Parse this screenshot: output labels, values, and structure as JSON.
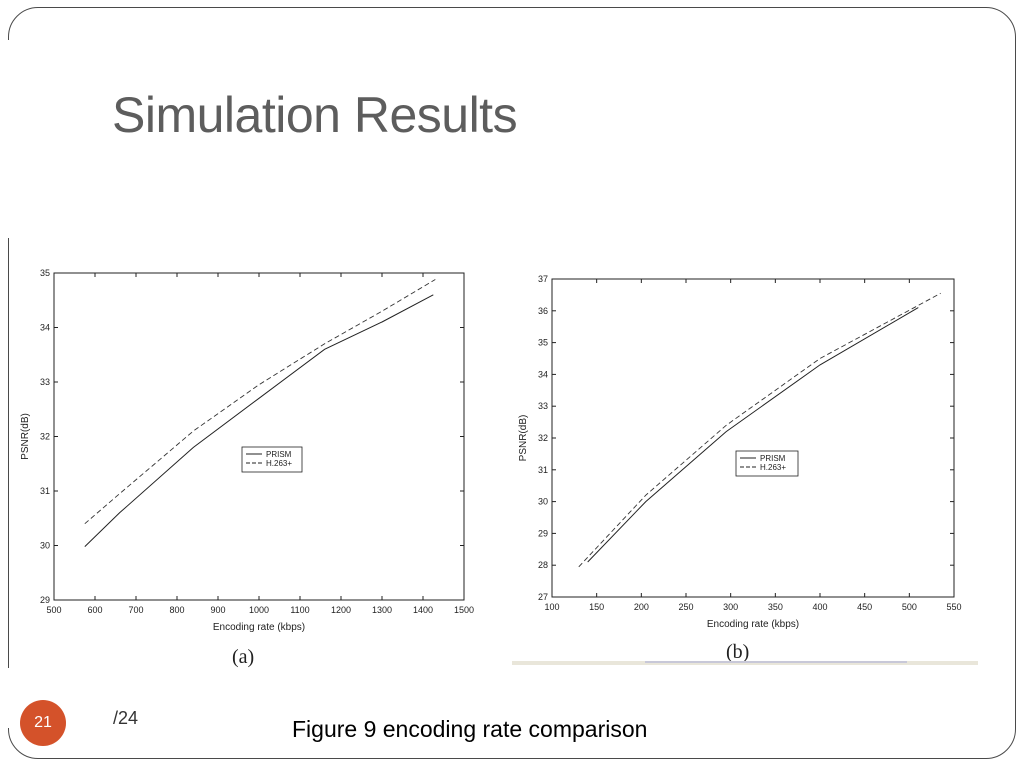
{
  "slide": {
    "title": "Simulation Results",
    "page_number": "21",
    "page_total": "/24",
    "figure_caption": "Figure 9 encoding rate comparison",
    "accent_color": "#d4522a"
  },
  "chart_data": [
    {
      "type": "line",
      "panel_label": "(a)",
      "xlabel": "Encoding rate (kbps)",
      "ylabel": "PSNR(dB)",
      "xlim": [
        500,
        1500
      ],
      "ylim": [
        29,
        35
      ],
      "xticks": [
        500,
        600,
        700,
        800,
        900,
        1000,
        1100,
        1200,
        1300,
        1400,
        1500
      ],
      "yticks": [
        29,
        30,
        31,
        32,
        33,
        34,
        35
      ],
      "grid": false,
      "legend": "center",
      "series": [
        {
          "name": "PRISM",
          "style": "solid",
          "x": [
            575,
            660,
            840,
            1000,
            1160,
            1300,
            1425
          ],
          "y": [
            29.98,
            30.6,
            31.8,
            32.7,
            33.6,
            34.1,
            34.6
          ]
        },
        {
          "name": "H.263+",
          "style": "dashed",
          "x": [
            575,
            660,
            840,
            1000,
            1160,
            1300,
            1430
          ],
          "y": [
            30.4,
            30.95,
            32.1,
            32.95,
            33.7,
            34.3,
            34.88
          ]
        }
      ]
    },
    {
      "type": "line",
      "panel_label": "(b)",
      "xlabel": "Encoding rate (kbps)",
      "ylabel": "PSNR(dB)",
      "xlim": [
        100,
        550
      ],
      "ylim": [
        27,
        37
      ],
      "xticks": [
        100,
        150,
        200,
        250,
        300,
        350,
        400,
        450,
        500,
        550
      ],
      "yticks": [
        27,
        28,
        29,
        30,
        31,
        32,
        33,
        34,
        35,
        36,
        37
      ],
      "grid": false,
      "legend": "center",
      "series": [
        {
          "name": "PRISM",
          "style": "solid",
          "x": [
            140,
            205,
            295,
            400,
            510
          ],
          "y": [
            28.1,
            30.0,
            32.2,
            34.3,
            36.1
          ]
        },
        {
          "name": "H.263+",
          "style": "dashed",
          "x": [
            130,
            205,
            295,
            400,
            535
          ],
          "y": [
            27.95,
            30.2,
            32.4,
            34.5,
            36.55
          ]
        }
      ]
    }
  ]
}
